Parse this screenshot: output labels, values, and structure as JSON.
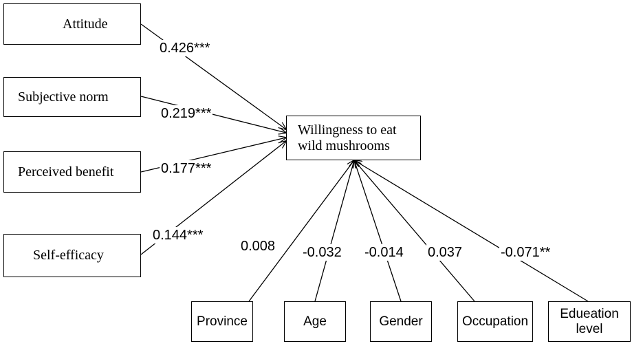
{
  "nodes": [
    {
      "label": "Attitude"
    },
    {
      "label": "Subjective norm"
    },
    {
      "label": "Perceived benefit"
    },
    {
      "label": "Self-efficacy"
    },
    {
      "lines": [
        "Willingness to eat",
        "wild mushrooms"
      ]
    },
    {
      "label": "Province"
    },
    {
      "label": "Age"
    },
    {
      "label": "Gender"
    },
    {
      "label": "Occupation"
    },
    {
      "lines": [
        "Edueation",
        "level"
      ]
    }
  ],
  "edges": [
    {
      "label": "0.426***"
    },
    {
      "label": "0.219***"
    },
    {
      "label": "0.177***"
    },
    {
      "label": "0.144***"
    },
    {
      "label": "0.008"
    },
    {
      "label": "-0.032"
    },
    {
      "label": "-0.014"
    },
    {
      "label": "0.037"
    },
    {
      "label": "-0.071**"
    }
  ]
}
